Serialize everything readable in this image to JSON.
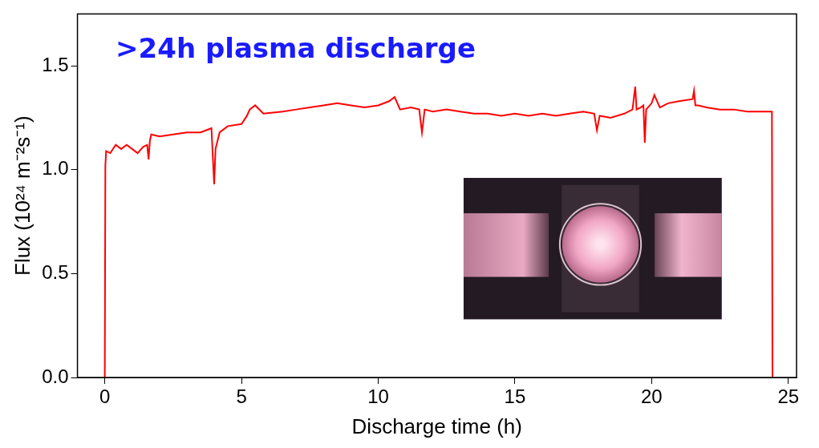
{
  "chart_data": {
    "type": "line",
    "annotations": [
      ">24h plasma discharge"
    ],
    "x_label": "Discharge time (h)",
    "y_label": "Flux (10²⁴ m⁻²s⁻¹)",
    "color": "#ff0000",
    "grid": false,
    "x": [
      0,
      0.02,
      0.05,
      0.2,
      0.4,
      0.6,
      0.8,
      1.0,
      1.2,
      1.4,
      1.55,
      1.6,
      1.65,
      1.7,
      2.0,
      2.5,
      3.0,
      3.5,
      3.9,
      4.0,
      4.05,
      4.2,
      4.5,
      5.0,
      5.2,
      5.3,
      5.5,
      5.8,
      6.5,
      7.0,
      7.5,
      8.0,
      8.5,
      9.0,
      9.5,
      10.0,
      10.4,
      10.6,
      10.8,
      11.2,
      11.5,
      11.6,
      11.7,
      12.0,
      12.5,
      13.0,
      13.5,
      14.0,
      14.5,
      15.0,
      15.5,
      16.0,
      16.5,
      17.0,
      17.5,
      17.9,
      18.0,
      18.1,
      18.5,
      19.0,
      19.3,
      19.4,
      19.45,
      19.6,
      19.7,
      19.75,
      19.8,
      20.0,
      20.1,
      20.3,
      20.6,
      21.0,
      21.5,
      21.55,
      21.6,
      21.7,
      22.0,
      22.5,
      23.0,
      23.5,
      24.0,
      24.4,
      24.42
    ],
    "values": [
      0,
      1.02,
      1.09,
      1.08,
      1.12,
      1.1,
      1.12,
      1.1,
      1.08,
      1.11,
      1.12,
      1.05,
      1.14,
      1.17,
      1.16,
      1.17,
      1.18,
      1.18,
      1.2,
      0.93,
      1.1,
      1.18,
      1.21,
      1.22,
      1.26,
      1.29,
      1.31,
      1.27,
      1.28,
      1.29,
      1.3,
      1.31,
      1.32,
      1.31,
      1.3,
      1.31,
      1.33,
      1.35,
      1.29,
      1.3,
      1.29,
      1.18,
      1.29,
      1.28,
      1.29,
      1.28,
      1.27,
      1.27,
      1.26,
      1.27,
      1.26,
      1.27,
      1.26,
      1.27,
      1.28,
      1.27,
      1.19,
      1.26,
      1.25,
      1.27,
      1.29,
      1.4,
      1.29,
      1.3,
      1.31,
      1.13,
      1.29,
      1.32,
      1.36,
      1.3,
      1.32,
      1.33,
      1.34,
      1.38,
      1.31,
      1.31,
      1.3,
      1.29,
      1.29,
      1.28,
      1.28,
      1.28,
      0
    ],
    "xlim": [
      -1,
      25.3
    ],
    "xticks": [
      0,
      5,
      10,
      15,
      20,
      25
    ],
    "ylim": [
      0,
      1.75
    ],
    "yticks": [
      {
        "value": 0,
        "label": "0.0"
      },
      0.5,
      {
        "value": 1,
        "label": "1.0"
      },
      1.5
    ]
  }
}
